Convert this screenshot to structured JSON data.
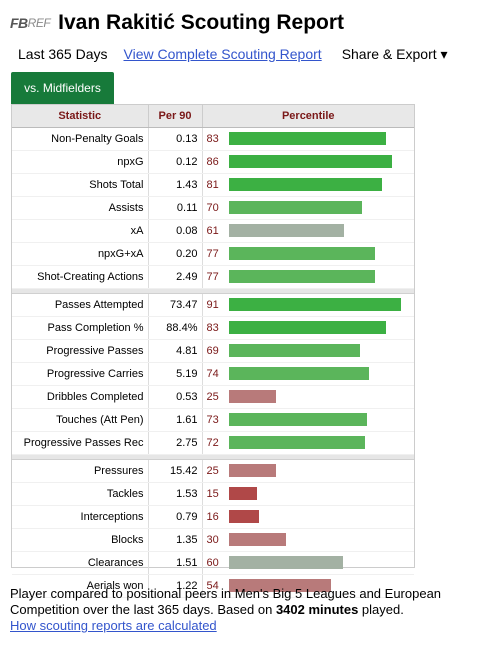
{
  "header": {
    "logo_text_fb": "FB",
    "logo_text_ref": "REF",
    "title": "Ivan Rakitić Scouting Report"
  },
  "subnav": {
    "period": "Last 365 Days",
    "complete_link": "View Complete Scouting Report",
    "share_label": "Share & Export ▾"
  },
  "tab": {
    "label": "vs. Midfielders"
  },
  "table": {
    "headers": [
      "Statistic",
      "Per 90",
      "Percentile"
    ],
    "groups": [
      [
        {
          "stat": "Non-Penalty Goals",
          "per90": "0.13",
          "pct": 83
        },
        {
          "stat": "npxG",
          "per90": "0.12",
          "pct": 86
        },
        {
          "stat": "Shots Total",
          "per90": "1.43",
          "pct": 81
        },
        {
          "stat": "Assists",
          "per90": "0.11",
          "pct": 70
        },
        {
          "stat": "xA",
          "per90": "0.08",
          "pct": 61
        },
        {
          "stat": "npxG+xA",
          "per90": "0.20",
          "pct": 77
        },
        {
          "stat": "Shot-Creating Actions",
          "per90": "2.49",
          "pct": 77
        }
      ],
      [
        {
          "stat": "Passes Attempted",
          "per90": "73.47",
          "pct": 91
        },
        {
          "stat": "Pass Completion %",
          "per90": "88.4%",
          "pct": 83
        },
        {
          "stat": "Progressive Passes",
          "per90": "4.81",
          "pct": 69
        },
        {
          "stat": "Progressive Carries",
          "per90": "5.19",
          "pct": 74
        },
        {
          "stat": "Dribbles Completed",
          "per90": "0.53",
          "pct": 25
        },
        {
          "stat": "Touches (Att Pen)",
          "per90": "1.61",
          "pct": 73
        },
        {
          "stat": "Progressive Passes Rec",
          "per90": "2.75",
          "pct": 72
        }
      ],
      [
        {
          "stat": "Pressures",
          "per90": "15.42",
          "pct": 25
        },
        {
          "stat": "Tackles",
          "per90": "1.53",
          "pct": 15
        },
        {
          "stat": "Interceptions",
          "per90": "0.79",
          "pct": 16
        },
        {
          "stat": "Blocks",
          "per90": "1.35",
          "pct": 30
        },
        {
          "stat": "Clearances",
          "per90": "1.51",
          "pct": 60
        },
        {
          "stat": "Aerials won",
          "per90": "1.22",
          "pct": 54
        }
      ]
    ]
  },
  "colors": {
    "high": "#3cb043",
    "mid_high": "#5bb55b",
    "mid": "#8fb78f",
    "neutral": "#a3b1a3",
    "low": "#b87a7a",
    "very_low": "#b04848"
  },
  "footer": {
    "line1_pre": "Player compared to positional peers in Men's Big 5 Leagues and European Competition over the last 365 days. Based on ",
    "minutes": "3402 minutes",
    "line1_post": " played.",
    "link": "How scouting reports are calculated"
  }
}
